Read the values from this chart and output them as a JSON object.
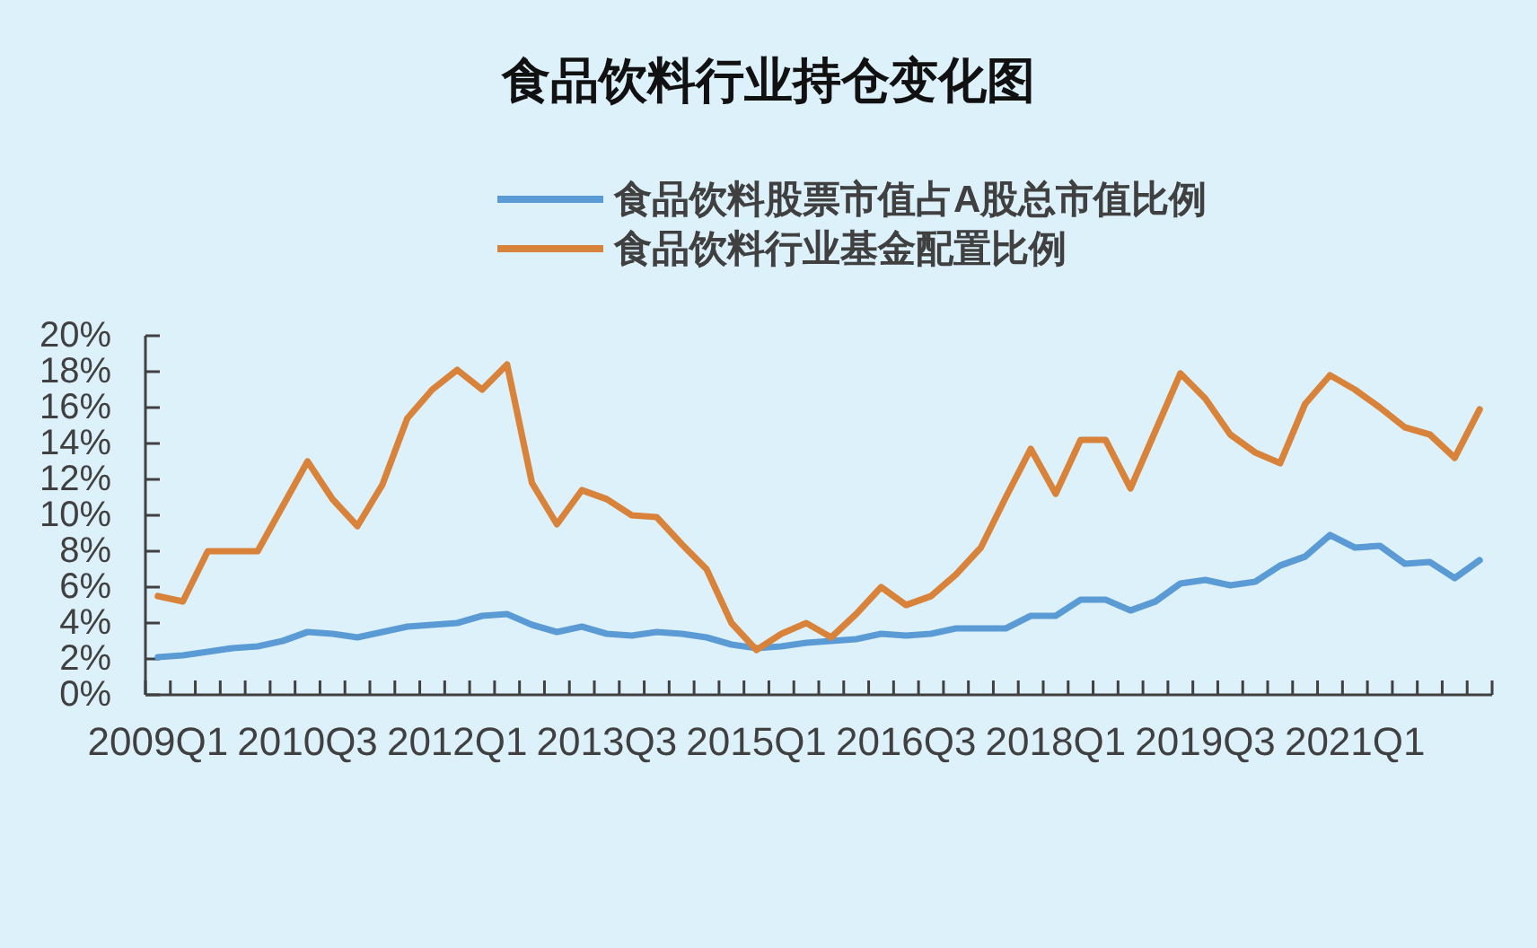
{
  "chart_data": {
    "type": "line",
    "title": "食品饮料行业持仓变化图",
    "categories": [
      "2009Q1",
      null,
      null,
      null,
      null,
      null,
      "2010Q3",
      null,
      null,
      null,
      null,
      null,
      "2012Q1",
      null,
      null,
      null,
      null,
      null,
      "2013Q3",
      null,
      null,
      null,
      null,
      null,
      "2015Q1",
      null,
      null,
      null,
      null,
      null,
      "2016Q3",
      null,
      null,
      null,
      null,
      null,
      "2018Q1",
      null,
      null,
      null,
      null,
      null,
      "2019Q3",
      null,
      null,
      null,
      null,
      null,
      "2021Q1",
      null,
      null,
      null,
      null,
      null
    ],
    "series": [
      {
        "name": "食品饮料股票市值占A股总市值比例",
        "color": "#5b9bd5",
        "values": [
          2.1,
          2.2,
          2.4,
          2.6,
          2.7,
          3.0,
          3.5,
          3.4,
          3.2,
          3.5,
          3.8,
          3.9,
          4.0,
          4.4,
          4.5,
          3.9,
          3.5,
          3.8,
          3.4,
          3.3,
          3.5,
          3.4,
          3.2,
          2.8,
          2.6,
          2.7,
          2.9,
          3.0,
          3.1,
          3.4,
          3.3,
          3.4,
          3.7,
          3.7,
          3.7,
          4.4,
          4.4,
          5.3,
          5.3,
          4.7,
          5.2,
          6.2,
          6.4,
          6.1,
          6.3,
          7.2,
          7.7,
          8.9,
          8.2,
          8.3,
          7.3,
          7.4,
          6.5,
          7.5
        ]
      },
      {
        "name": "食品饮料行业基金配置比例",
        "color": "#d8823a",
        "values": [
          5.5,
          5.2,
          8.0,
          8.0,
          8.0,
          10.5,
          13.0,
          10.9,
          9.4,
          11.7,
          15.4,
          17.0,
          18.1,
          17.0,
          18.4,
          11.8,
          9.5,
          11.4,
          10.9,
          10.0,
          9.9,
          8.4,
          7.0,
          4.0,
          2.5,
          3.4,
          4.0,
          3.2,
          4.5,
          6.0,
          5.0,
          5.5,
          6.7,
          8.2,
          11.0,
          13.7,
          11.2,
          14.2,
          14.2,
          11.5,
          14.7,
          17.9,
          16.5,
          14.5,
          13.5,
          12.9,
          16.2,
          17.8,
          17.0,
          16.0,
          14.9,
          14.5,
          13.2,
          15.9
        ]
      }
    ],
    "ylim": [
      0,
      20
    ],
    "yticks": [
      {
        "value": 0,
        "label": "0%"
      },
      {
        "value": 2,
        "label": "2%"
      },
      {
        "value": 4,
        "label": "4%"
      },
      {
        "value": 6,
        "label": "6%"
      },
      {
        "value": 8,
        "label": "8%"
      },
      {
        "value": 10,
        "label": "10%"
      },
      {
        "value": 12,
        "label": "12%"
      },
      {
        "value": 14,
        "label": "14%"
      },
      {
        "value": 16,
        "label": "16%"
      },
      {
        "value": 18,
        "label": "18%"
      },
      {
        "value": 20,
        "label": "20%"
      }
    ],
    "legend": "top",
    "line_style": "solid"
  }
}
